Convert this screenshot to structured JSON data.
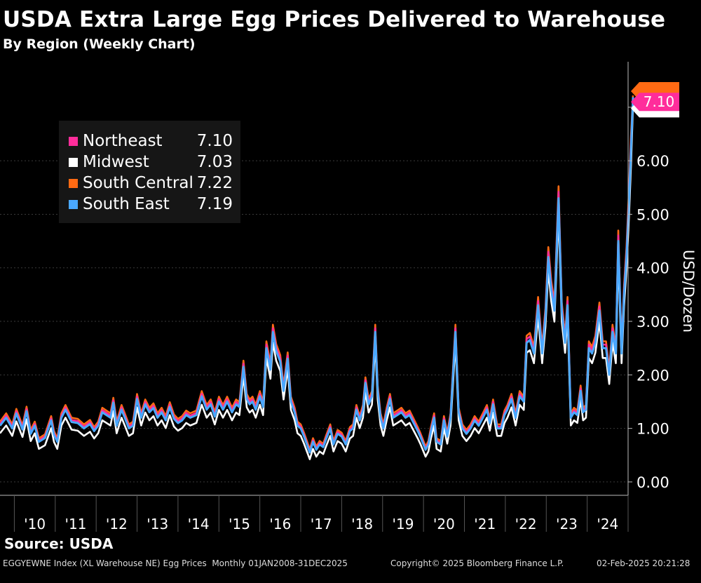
{
  "chart_data": {
    "type": "line",
    "title": "USDA Extra Large Egg Prices Delivered to Warehouse",
    "subtitle": "By Region (Weekly Chart)",
    "ylabel": "USD/Dozen",
    "xlabel": "",
    "ylim": [
      -0.25,
      7.85
    ],
    "xlim": [
      2009.65,
      2025.0
    ],
    "yticks": [
      0,
      1,
      2,
      3,
      4,
      5,
      6
    ],
    "ytick_labels": [
      "0.00",
      "1.00",
      "2.00",
      "3.00",
      "4.00",
      "5.00",
      "6.00"
    ],
    "x_tick_labels": [
      "'10",
      "'11",
      "'12",
      "'13",
      "'14",
      "'15",
      "'16",
      "'17",
      "'18",
      "'19",
      "'20",
      "'21",
      "'22",
      "'23",
      "'24"
    ],
    "legend_position": "top-left",
    "series": [
      {
        "name": "Northeast",
        "color": "#ff2d9b",
        "last": "7.10"
      },
      {
        "name": "Midwest",
        "color": "#ffffff",
        "last": "7.03"
      },
      {
        "name": "South Central",
        "color": "#ff6a13",
        "last": "7.22"
      },
      {
        "name": "South East",
        "color": "#4aa8ff",
        "last": "7.19"
      }
    ],
    "base_points": [
      [
        2009.65,
        1.05
      ],
      [
        2009.8,
        1.2
      ],
      [
        2009.95,
        1.0
      ],
      [
        2010.05,
        1.28
      ],
      [
        2010.2,
        0.98
      ],
      [
        2010.3,
        1.32
      ],
      [
        2010.4,
        0.9
      ],
      [
        2010.5,
        1.05
      ],
      [
        2010.6,
        0.75
      ],
      [
        2010.75,
        0.82
      ],
      [
        2010.9,
        1.15
      ],
      [
        2010.97,
        0.88
      ],
      [
        2011.05,
        0.75
      ],
      [
        2011.15,
        1.2
      ],
      [
        2011.25,
        1.35
      ],
      [
        2011.4,
        1.12
      ],
      [
        2011.55,
        1.1
      ],
      [
        2011.7,
        1.0
      ],
      [
        2011.85,
        1.08
      ],
      [
        2011.95,
        0.95
      ],
      [
        2012.05,
        1.05
      ],
      [
        2012.15,
        1.3
      ],
      [
        2012.25,
        1.25
      ],
      [
        2012.35,
        1.2
      ],
      [
        2012.42,
        1.48
      ],
      [
        2012.5,
        1.05
      ],
      [
        2012.62,
        1.35
      ],
      [
        2012.7,
        1.2
      ],
      [
        2012.8,
        1.0
      ],
      [
        2012.9,
        1.05
      ],
      [
        2013.0,
        1.55
      ],
      [
        2013.1,
        1.2
      ],
      [
        2013.2,
        1.45
      ],
      [
        2013.3,
        1.3
      ],
      [
        2013.4,
        1.38
      ],
      [
        2013.5,
        1.2
      ],
      [
        2013.6,
        1.3
      ],
      [
        2013.7,
        1.15
      ],
      [
        2013.8,
        1.4
      ],
      [
        2013.9,
        1.18
      ],
      [
        2014.0,
        1.1
      ],
      [
        2014.1,
        1.15
      ],
      [
        2014.2,
        1.25
      ],
      [
        2014.3,
        1.2
      ],
      [
        2014.45,
        1.25
      ],
      [
        2014.58,
        1.6
      ],
      [
        2014.7,
        1.35
      ],
      [
        2014.8,
        1.45
      ],
      [
        2014.9,
        1.22
      ],
      [
        2015.0,
        1.5
      ],
      [
        2015.1,
        1.35
      ],
      [
        2015.2,
        1.5
      ],
      [
        2015.32,
        1.3
      ],
      [
        2015.42,
        1.45
      ],
      [
        2015.5,
        1.4
      ],
      [
        2015.6,
        2.15
      ],
      [
        2015.68,
        1.55
      ],
      [
        2015.75,
        1.45
      ],
      [
        2015.82,
        1.5
      ],
      [
        2015.9,
        1.35
      ],
      [
        2016.0,
        1.6
      ],
      [
        2016.08,
        1.4
      ],
      [
        2016.16,
        2.5
      ],
      [
        2016.26,
        2.1
      ],
      [
        2016.32,
        2.8
      ],
      [
        2016.4,
        2.45
      ],
      [
        2016.5,
        2.25
      ],
      [
        2016.58,
        1.7
      ],
      [
        2016.68,
        2.3
      ],
      [
        2016.76,
        1.5
      ],
      [
        2016.85,
        1.3
      ],
      [
        2016.92,
        1.05
      ],
      [
        2017.0,
        1.0
      ],
      [
        2017.08,
        0.85
      ],
      [
        2017.15,
        0.7
      ],
      [
        2017.22,
        0.55
      ],
      [
        2017.3,
        0.75
      ],
      [
        2017.38,
        0.6
      ],
      [
        2017.46,
        0.7
      ],
      [
        2017.55,
        0.65
      ],
      [
        2017.62,
        0.8
      ],
      [
        2017.72,
        1.0
      ],
      [
        2017.8,
        0.7
      ],
      [
        2017.9,
        0.9
      ],
      [
        2018.0,
        0.85
      ],
      [
        2018.1,
        0.7
      ],
      [
        2018.2,
        0.95
      ],
      [
        2018.28,
        1.0
      ],
      [
        2018.36,
        1.35
      ],
      [
        2018.44,
        1.15
      ],
      [
        2018.52,
        1.35
      ],
      [
        2018.58,
        1.85
      ],
      [
        2018.66,
        1.45
      ],
      [
        2018.74,
        1.6
      ],
      [
        2018.82,
        2.8
      ],
      [
        2018.88,
        1.7
      ],
      [
        2018.95,
        1.2
      ],
      [
        2019.02,
        1.0
      ],
      [
        2019.1,
        1.3
      ],
      [
        2019.18,
        1.55
      ],
      [
        2019.26,
        1.2
      ],
      [
        2019.36,
        1.25
      ],
      [
        2019.46,
        1.3
      ],
      [
        2019.56,
        1.2
      ],
      [
        2019.66,
        1.25
      ],
      [
        2019.76,
        1.1
      ],
      [
        2019.86,
        0.95
      ],
      [
        2019.92,
        0.85
      ],
      [
        2020.0,
        0.7
      ],
      [
        2020.05,
        0.6
      ],
      [
        2020.12,
        0.7
      ],
      [
        2020.18,
        0.95
      ],
      [
        2020.26,
        1.2
      ],
      [
        2020.32,
        0.75
      ],
      [
        2020.42,
        0.7
      ],
      [
        2020.5,
        1.15
      ],
      [
        2020.58,
        0.85
      ],
      [
        2020.66,
        1.2
      ],
      [
        2020.78,
        2.8
      ],
      [
        2020.86,
        1.3
      ],
      [
        2020.95,
        1.0
      ],
      [
        2021.05,
        0.9
      ],
      [
        2021.15,
        1.0
      ],
      [
        2021.25,
        1.15
      ],
      [
        2021.35,
        1.05
      ],
      [
        2021.45,
        1.2
      ],
      [
        2021.55,
        1.35
      ],
      [
        2021.62,
        1.1
      ],
      [
        2021.7,
        1.45
      ],
      [
        2021.8,
        1.0
      ],
      [
        2021.9,
        1.0
      ],
      [
        2021.98,
        1.25
      ],
      [
        2022.05,
        1.35
      ],
      [
        2022.15,
        1.55
      ],
      [
        2022.25,
        1.2
      ],
      [
        2022.35,
        1.6
      ],
      [
        2022.45,
        1.5
      ],
      [
        2022.52,
        2.6
      ],
      [
        2022.6,
        2.65
      ],
      [
        2022.7,
        2.4
      ],
      [
        2022.8,
        3.3
      ],
      [
        2022.9,
        2.4
      ],
      [
        2022.98,
        3.1
      ],
      [
        2023.05,
        4.2
      ],
      [
        2023.12,
        3.6
      ],
      [
        2023.2,
        3.2
      ],
      [
        2023.3,
        5.3
      ],
      [
        2023.38,
        3.2
      ],
      [
        2023.46,
        2.6
      ],
      [
        2023.52,
        3.3
      ],
      [
        2023.6,
        1.2
      ],
      [
        2023.68,
        1.3
      ],
      [
        2023.76,
        1.25
      ],
      [
        2023.84,
        1.7
      ],
      [
        2023.9,
        1.3
      ],
      [
        2023.97,
        1.35
      ],
      [
        2024.04,
        2.5
      ],
      [
        2024.12,
        2.4
      ],
      [
        2024.2,
        2.6
      ],
      [
        2024.3,
        3.2
      ],
      [
        2024.38,
        2.5
      ],
      [
        2024.46,
        2.5
      ],
      [
        2024.54,
        2.0
      ],
      [
        2024.62,
        2.8
      ],
      [
        2024.7,
        2.4
      ],
      [
        2024.76,
        4.5
      ],
      [
        2024.84,
        2.4
      ],
      [
        2024.9,
        3.5
      ],
      [
        2024.96,
        4.2
      ],
      [
        2025.02,
        5.2
      ],
      [
        2025.07,
        6.2
      ],
      [
        2025.12,
        7.12
      ]
    ]
  }
}
